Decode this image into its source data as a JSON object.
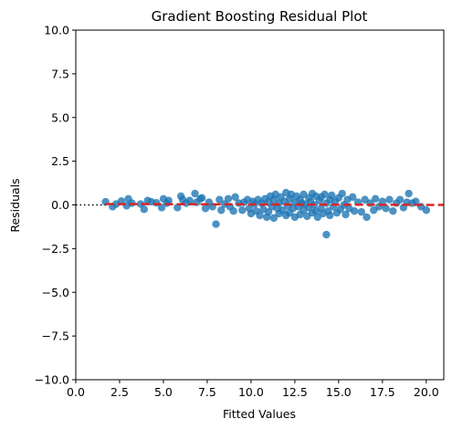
{
  "chart_data": {
    "type": "scatter",
    "title": "Gradient Boosting Residual Plot",
    "xlabel": "Fitted Values",
    "ylabel": "Residuals",
    "xlim": [
      0.0,
      21.0
    ],
    "ylim": [
      -10.0,
      10.0
    ],
    "x_ticks": [
      0.0,
      2.5,
      5.0,
      7.5,
      10.0,
      12.5,
      15.0,
      17.5,
      20.0
    ],
    "y_ticks": [
      10.0,
      7.5,
      5.0,
      2.5,
      0.0,
      -2.5,
      -5.0,
      -7.5,
      -10.0
    ],
    "x_tick_labels": [
      "0.0",
      "2.5",
      "5.0",
      "7.5",
      "10.0",
      "12.5",
      "15.0",
      "17.5",
      "20.0"
    ],
    "y_tick_labels": [
      "10.0",
      "7.5",
      "5.0",
      "2.5",
      "0.0",
      "−2.5",
      "−5.0",
      "−7.5",
      "−10.0"
    ],
    "grid": false,
    "point_color": "#1f77b4",
    "trend_color": "#d62728",
    "zero_line_color": "#000000",
    "points": [
      [
        1.7,
        0.18
      ],
      [
        2.1,
        -0.1
      ],
      [
        2.3,
        0.05
      ],
      [
        2.6,
        0.22
      ],
      [
        2.9,
        -0.05
      ],
      [
        3.0,
        0.35
      ],
      [
        3.2,
        0.1
      ],
      [
        3.7,
        0.05
      ],
      [
        3.9,
        -0.25
      ],
      [
        4.1,
        0.25
      ],
      [
        4.3,
        0.18
      ],
      [
        4.6,
        0.12
      ],
      [
        4.9,
        -0.15
      ],
      [
        5.0,
        0.35
      ],
      [
        5.2,
        0.1
      ],
      [
        5.3,
        0.25
      ],
      [
        5.8,
        -0.15
      ],
      [
        6.0,
        0.5
      ],
      [
        6.1,
        0.3
      ],
      [
        6.3,
        0.1
      ],
      [
        6.5,
        0.25
      ],
      [
        6.8,
        0.65
      ],
      [
        6.9,
        0.15
      ],
      [
        7.1,
        0.35
      ],
      [
        7.2,
        0.4
      ],
      [
        7.4,
        -0.2
      ],
      [
        7.6,
        0.15
      ],
      [
        7.8,
        -0.1
      ],
      [
        8.0,
        -1.1
      ],
      [
        8.2,
        0.3
      ],
      [
        8.3,
        -0.3
      ],
      [
        8.5,
        0.05
      ],
      [
        8.7,
        0.35
      ],
      [
        8.8,
        -0.1
      ],
      [
        9.0,
        -0.35
      ],
      [
        9.1,
        0.45
      ],
      [
        9.3,
        0.1
      ],
      [
        9.5,
        -0.3
      ],
      [
        9.6,
        0.15
      ],
      [
        9.8,
        0.3
      ],
      [
        9.9,
        -0.2
      ],
      [
        10.0,
        -0.5
      ],
      [
        10.1,
        0.2
      ],
      [
        10.2,
        0.05
      ],
      [
        10.3,
        -0.35
      ],
      [
        10.4,
        0.3
      ],
      [
        10.5,
        -0.6
      ],
      [
        10.6,
        0.1
      ],
      [
        10.7,
        -0.25
      ],
      [
        10.8,
        0.35
      ],
      [
        10.9,
        -0.7
      ],
      [
        11.0,
        0.15
      ],
      [
        11.0,
        -0.4
      ],
      [
        11.1,
        0.5
      ],
      [
        11.2,
        -0.1
      ],
      [
        11.3,
        0.3
      ],
      [
        11.3,
        -0.75
      ],
      [
        11.4,
        0.6
      ],
      [
        11.5,
        -0.2
      ],
      [
        11.6,
        0.1
      ],
      [
        11.6,
        -0.5
      ],
      [
        11.7,
        0.45
      ],
      [
        11.8,
        -0.3
      ],
      [
        11.9,
        0.2
      ],
      [
        12.0,
        -0.6
      ],
      [
        12.0,
        0.7
      ],
      [
        12.1,
        -0.05
      ],
      [
        12.2,
        0.35
      ],
      [
        12.2,
        -0.45
      ],
      [
        12.3,
        0.6
      ],
      [
        12.4,
        -0.2
      ],
      [
        12.5,
        0.15
      ],
      [
        12.5,
        -0.7
      ],
      [
        12.6,
        0.5
      ],
      [
        12.7,
        -0.1
      ],
      [
        12.8,
        0.3
      ],
      [
        12.8,
        -0.55
      ],
      [
        12.9,
        0.1
      ],
      [
        13.0,
        -0.3
      ],
      [
        13.0,
        0.6
      ],
      [
        13.1,
        0.05
      ],
      [
        13.2,
        -0.65
      ],
      [
        13.3,
        0.4
      ],
      [
        13.3,
        -0.15
      ],
      [
        13.4,
        0.2
      ],
      [
        13.5,
        -0.45
      ],
      [
        13.5,
        0.65
      ],
      [
        13.6,
        0.0
      ],
      [
        13.7,
        -0.35
      ],
      [
        13.7,
        0.5
      ],
      [
        13.8,
        -0.7
      ],
      [
        13.9,
        0.25
      ],
      [
        14.0,
        -0.2
      ],
      [
        14.0,
        0.45
      ],
      [
        14.1,
        -0.5
      ],
      [
        14.2,
        0.6
      ],
      [
        14.3,
        -1.7
      ],
      [
        14.3,
        0.1
      ],
      [
        14.4,
        -0.35
      ],
      [
        14.5,
        0.3
      ],
      [
        14.5,
        -0.6
      ],
      [
        14.6,
        0.55
      ],
      [
        14.7,
        -0.1
      ],
      [
        14.8,
        0.2
      ],
      [
        14.9,
        -0.45
      ],
      [
        15.0,
        0.4
      ],
      [
        15.1,
        -0.25
      ],
      [
        15.2,
        0.65
      ],
      [
        15.3,
        0.0
      ],
      [
        15.4,
        -0.55
      ],
      [
        15.5,
        0.3
      ],
      [
        15.6,
        -0.2
      ],
      [
        15.8,
        0.45
      ],
      [
        15.9,
        -0.35
      ],
      [
        16.1,
        0.15
      ],
      [
        16.3,
        -0.4
      ],
      [
        16.5,
        0.3
      ],
      [
        16.6,
        -0.7
      ],
      [
        16.8,
        0.1
      ],
      [
        17.0,
        -0.3
      ],
      [
        17.1,
        0.35
      ],
      [
        17.3,
        -0.1
      ],
      [
        17.5,
        0.2
      ],
      [
        17.7,
        -0.2
      ],
      [
        17.9,
        0.3
      ],
      [
        18.1,
        -0.35
      ],
      [
        18.3,
        0.1
      ],
      [
        18.5,
        0.3
      ],
      [
        18.7,
        -0.15
      ],
      [
        18.9,
        0.15
      ],
      [
        19.0,
        0.65
      ],
      [
        19.2,
        0.1
      ],
      [
        19.4,
        0.2
      ],
      [
        19.7,
        -0.1
      ],
      [
        20.0,
        -0.3
      ]
    ],
    "trend_line": [
      [
        1.7,
        0.05
      ],
      [
        21.0,
        0.0
      ]
    ],
    "zero_line": [
      [
        0.0,
        0.0
      ],
      [
        1.7,
        0.0
      ]
    ]
  }
}
